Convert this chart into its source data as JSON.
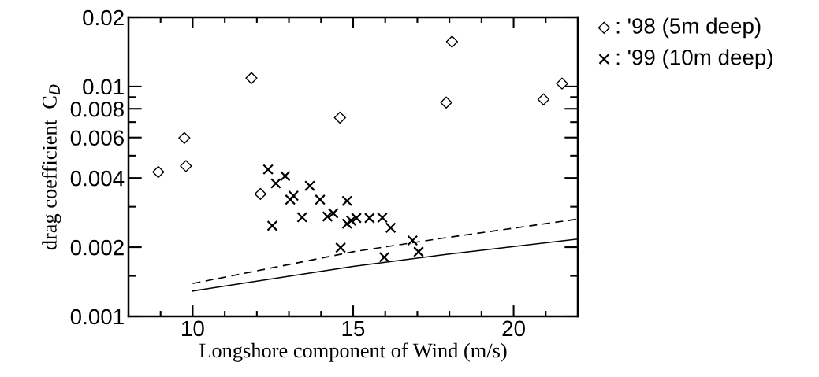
{
  "chart_data": {
    "type": "scatter",
    "xlabel": "Longshore component of Wind (m/s)",
    "ylabel": "drag coefficient  C$_{D}$",
    "log": "y",
    "xlim": [
      8,
      22
    ],
    "ylim": [
      0.001,
      0.02
    ],
    "xticks": [
      {
        "value": 8,
        "label": null
      },
      {
        "value": 9,
        "label": null
      },
      10,
      {
        "value": 11,
        "label": null
      },
      {
        "value": 12,
        "label": null
      },
      {
        "value": 13,
        "label": null
      },
      {
        "value": 14,
        "label": null
      },
      15,
      {
        "value": 16,
        "label": null
      },
      {
        "value": 17,
        "label": null
      },
      {
        "value": 18,
        "label": null
      },
      {
        "value": 19,
        "label": null
      },
      20,
      {
        "value": 21,
        "label": null
      },
      {
        "value": 22,
        "label": null
      }
    ],
    "yticks": [
      0.001,
      {
        "value": 0.0015,
        "label": null
      },
      0.002,
      {
        "value": 0.003,
        "label": null
      },
      0.004,
      {
        "value": 0.005,
        "label": null
      },
      0.006,
      {
        "value": 0.007,
        "label": null
      },
      0.008,
      {
        "value": 0.009,
        "label": null
      },
      0.01,
      0.02
    ],
    "grid": false,
    "legend": "top right",
    "series": [
      {
        "name": ": '98 (5m deep)",
        "color": "#000000",
        "marker": "diamond",
        "x": [
          8.93,
          9.74,
          9.79,
          11.83,
          12.11,
          14.59,
          18.08,
          17.9,
          20.93,
          21.51
        ],
        "values": [
          0.00425,
          0.00597,
          0.00451,
          0.01088,
          0.00341,
          0.00732,
          0.01567,
          0.00852,
          0.00879,
          0.0103
        ]
      },
      {
        "name": ": '99 (10m deep)",
        "color": "#000000",
        "marker": "cross",
        "x": [
          12.35,
          12.59,
          12.88,
          12.48,
          13.04,
          13.14,
          13.41,
          13.65,
          13.97,
          14.2,
          14.38,
          14.81,
          14.61,
          14.81,
          14.94,
          15.1,
          15.51,
          15.91,
          16.17,
          15.97,
          16.85,
          17.04
        ],
        "values": [
          0.00436,
          0.00379,
          0.00408,
          0.00248,
          0.00322,
          0.00335,
          0.0027,
          0.0037,
          0.00322,
          0.00272,
          0.00281,
          0.00318,
          0.00199,
          0.00253,
          0.00261,
          0.00268,
          0.00268,
          0.00269,
          0.00243,
          0.00181,
          0.00214,
          0.00191
        ]
      },
      {
        "type": "line",
        "color": "#000000",
        "line_style": "dashed",
        "marker": "none",
        "x": [
          10,
          15,
          17.9,
          22
        ],
        "values": [
          0.00139,
          0.00191,
          0.0022,
          0.00265
        ]
      },
      {
        "type": "line",
        "color": "#000000",
        "line_style": "solid",
        "marker": "none",
        "x": [
          10,
          15,
          17.9,
          22
        ],
        "values": [
          0.00129,
          0.00165,
          0.00186,
          0.00217
        ]
      }
    ]
  }
}
